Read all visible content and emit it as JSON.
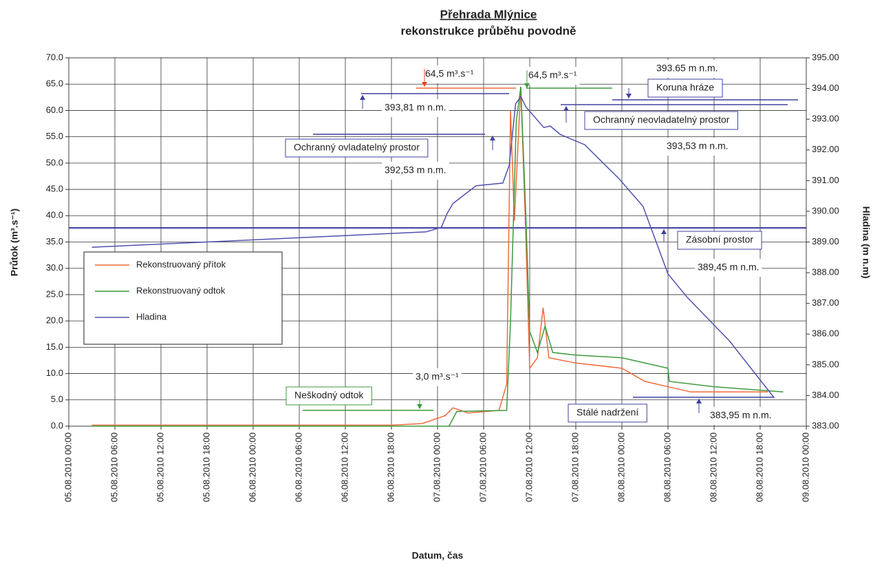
{
  "chart_data": {
    "type": "line",
    "title": "Přehrada Mlýnice",
    "subtitle": "rekonstrukce průběhu povodně",
    "xlabel": "Datum, čas",
    "ylabel": "Průtok (m³.s⁻¹)",
    "y2label": "Hladina (m n.m)",
    "xlim": [
      "05.08.2010 00:00",
      "09.08.2010 00:00"
    ],
    "xticks": [
      "05.08.2010 00:00",
      "05.08.2010 06:00",
      "05.08.2010 12:00",
      "05.08.2010 18:00",
      "06.08.2010 00:00",
      "06.08.2010 06:00",
      "06.08.2010 12:00",
      "06.08.2010 18:00",
      "07.08.2010 00:00",
      "07.08.2010 06:00",
      "07.08.2010 12:00",
      "07.08.2010 18:00",
      "08.08.2010 00:00",
      "08.08.2010 06:00",
      "08.08.2010 12:00",
      "08.08.2010 18:00",
      "09.08.2010 00:00"
    ],
    "ylim": [
      0,
      70
    ],
    "yticks": [
      {
        "value": 0,
        "label": "0.0"
      },
      {
        "value": 5,
        "label": "5.0"
      },
      {
        "value": 10,
        "label": "10.0"
      },
      {
        "value": 15,
        "label": "15.0"
      },
      {
        "value": 20,
        "label": "20.0"
      },
      {
        "value": 25,
        "label": "25.0"
      },
      {
        "value": 30,
        "label": "30.0"
      },
      {
        "value": 35,
        "label": "35.0"
      },
      {
        "value": 40,
        "label": "40.0"
      },
      {
        "value": 45,
        "label": "45.0"
      },
      {
        "value": 50,
        "label": "50.0"
      },
      {
        "value": 55,
        "label": "55.0"
      },
      {
        "value": 60,
        "label": "60.0"
      },
      {
        "value": 65,
        "label": "65.0"
      },
      {
        "value": 70,
        "label": "70.0"
      }
    ],
    "y2lim": [
      383,
      395
    ],
    "y2ticks": [
      {
        "value": 383,
        "label": "383.00"
      },
      {
        "value": 384,
        "label": "384.00"
      },
      {
        "value": 385,
        "label": "385.00"
      },
      {
        "value": 386,
        "label": "386.00"
      },
      {
        "value": 387,
        "label": "387.00"
      },
      {
        "value": 388,
        "label": "388.00"
      },
      {
        "value": 389,
        "label": "389.00"
      },
      {
        "value": 390,
        "label": "390.00"
      },
      {
        "value": 391,
        "label": "391.00"
      },
      {
        "value": 392,
        "label": "392.00"
      },
      {
        "value": 393,
        "label": "393.00"
      },
      {
        "value": 394,
        "label": "394.00"
      },
      {
        "value": 395,
        "label": "395.00"
      }
    ],
    "grid": true,
    "series": [
      {
        "name": "Rekonstruovaný přítok",
        "color": "#ee6a3c",
        "x": [
          "05.08.2010 03:00",
          "06.08.2010 18:00",
          "06.08.2010 22:00",
          "07.08.2010 01:00",
          "07.08.2010 02:00",
          "07.08.2010 03:00",
          "07.08.2010 04:00",
          "07.08.2010 08:00",
          "07.08.2010 09:00",
          "07.08.2010 09:30",
          "07.08.2010 10:00",
          "07.08.2010 10:50",
          "07.08.2010 11:30",
          "07.08.2010 12:00",
          "07.08.2010 13:00",
          "07.08.2010 13:45",
          "07.08.2010 14:30",
          "07.08.2010 18:00",
          "08.08.2010 00:00",
          "08.08.2010 03:00",
          "08.08.2010 06:00",
          "08.08.2010 09:00",
          "08.08.2010 19:00"
        ],
        "values": [
          0.2,
          0.2,
          0.5,
          2.0,
          3.5,
          3.0,
          2.5,
          3.0,
          8.0,
          60.0,
          39.0,
          64.5,
          36.0,
          11.0,
          13.0,
          22.5,
          13.0,
          12.0,
          11.0,
          8.5,
          7.5,
          6.5,
          6.5
        ]
      },
      {
        "name": "Rekonstruovaný odtok",
        "color": "#3d9a3d",
        "x": [
          "05.08.2010 03:00",
          "07.08.2010 01:30",
          "07.08.2010 02:30",
          "07.08.2010 09:00",
          "07.08.2010 09:30",
          "07.08.2010 10:15",
          "07.08.2010 10:50",
          "07.08.2010 11:30",
          "07.08.2010 12:00",
          "07.08.2010 13:00",
          "07.08.2010 14:00",
          "07.08.2010 15:00",
          "07.08.2010 18:00",
          "08.08.2010 00:00",
          "08.08.2010 06:00",
          "08.08.2010 06:10",
          "08.08.2010 12:00",
          "08.08.2010 21:00"
        ],
        "values": [
          0.0,
          0.0,
          2.8,
          3.0,
          20.0,
          58.0,
          64.5,
          40.0,
          18.0,
          14.0,
          19.0,
          14.0,
          13.5,
          13.0,
          11.0,
          8.5,
          7.5,
          6.5
        ]
      },
      {
        "name": "Hladina",
        "color": "#5050b0",
        "axis": "y2",
        "x": [
          "05.08.2010 03:00",
          "06.08.2010 22:30",
          "07.08.2010 00:30",
          "07.08.2010 01:15",
          "07.08.2010 02:00",
          "07.08.2010 05:00",
          "07.08.2010 08:30",
          "07.08.2010 09:20",
          "07.08.2010 10:10",
          "07.08.2010 10:50",
          "07.08.2010 11:30",
          "07.08.2010 13:50",
          "07.08.2010 14:40",
          "07.08.2010 16:00",
          "07.08.2010 19:10",
          "07.08.2010 23:40",
          "08.08.2010 02:45",
          "08.08.2010 06:00",
          "08.08.2010 08:30",
          "08.08.2010 14:00",
          "08.08.2010 19:50"
        ],
        "values": [
          388.83,
          389.33,
          389.48,
          389.93,
          390.25,
          390.83,
          390.92,
          391.5,
          393.5,
          393.74,
          393.4,
          392.73,
          392.78,
          392.5,
          392.17,
          391.05,
          390.16,
          387.96,
          387.2,
          385.78,
          383.92
        ]
      }
    ],
    "annotations": [
      {
        "text": "64,5 m³.s⁻¹",
        "color": "#e8402a"
      },
      {
        "text": "64,5 m³.s⁻¹",
        "color": "#3d9a3d"
      },
      {
        "text": "393.65 m n.m.",
        "color": "#4040a0"
      },
      {
        "text": "Koruna hráze",
        "color": "#4040a0",
        "boxed": true
      },
      {
        "text": "393,81 m n.m.",
        "color": "#4040a0"
      },
      {
        "text": "Ochranný neovladatelný prostor",
        "color": "#4040a0",
        "boxed": true
      },
      {
        "text": "Ochranný ovladatelný prostor",
        "color": "#4040a0",
        "boxed": true
      },
      {
        "text": "393,53 m n.m.",
        "color": "#4040a0"
      },
      {
        "text": "392,53 m n.m.",
        "color": "#4040a0"
      },
      {
        "text": "Zásobní prostor",
        "color": "#4040a0",
        "boxed": true
      },
      {
        "text": "389,45 m n.m.",
        "color": "#4040a0"
      },
      {
        "text": "3,0 m³.s⁻¹",
        "color": "#3d9a3d"
      },
      {
        "text": "Neškodný odtok",
        "color": "#3d9a3d",
        "boxed": true
      },
      {
        "text": "Stálé nadržení",
        "color": "#4040a0",
        "boxed": true
      },
      {
        "text": "383,95 m n.m.",
        "color": "#4040a0"
      }
    ]
  }
}
